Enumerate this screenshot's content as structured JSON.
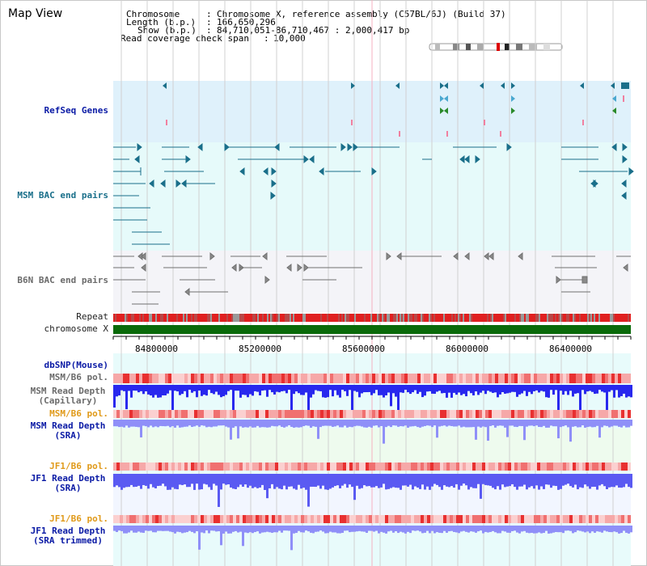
{
  "title": "Map View",
  "info": {
    "chromosome_key": "Chromosome",
    "chromosome_val": "Chromosome X, reference assembly (C57BL/6J) (Build 37)",
    "length_key": "Length (b.p.)",
    "length_val": "166,650,296",
    "show_key": "Show (b.p.)",
    "show_val": "84,710,051-86,710,467 : 2,000,417 bp",
    "span_key": "Read coverage check span",
    "span_val": "10,000"
  },
  "tracks": {
    "refseq": "RefSeq Genes",
    "msm_bac": "MSM BAC end pairs",
    "b6n_bac": "B6N BAC end pairs",
    "repeat": "Repeat",
    "chromosome": "chromosome X",
    "dbsnp": "dbSNP(Mouse)",
    "msm_b6_pol_1": "MSM/B6 pol.",
    "msm_depth_cap_1": "MSM Read Depth",
    "msm_depth_cap_2": "(Capillary)",
    "msm_b6_pol_2": "MSM/B6 pol.",
    "msm_depth_sra_1": "MSM Read Depth",
    "msm_depth_sra_2": "(SRA)",
    "jf1_b6_pol_1": "JF1/B6 pol.",
    "jf1_depth_sra_1": "JF1 Read Depth",
    "jf1_depth_sra_2": "(SRA)",
    "jf1_b6_pol_2": "JF1/B6 pol.",
    "jf1_depth_trim_1": "JF1 Read Depth",
    "jf1_depth_trim_2": "(SRA trimmed)"
  },
  "axis_ticks": [
    "84800000",
    "85200000",
    "85600000",
    "86000000",
    "86400000"
  ],
  "colors": {
    "refseq_bg": "#dff1fb",
    "bac_bg": "#e6fafa",
    "b6n_bg": "#f4f4f8",
    "lower_bg": "#e8fbfb",
    "gene_blue": "#1a6f8a",
    "chromosome_green": "#0a6a0a",
    "repeat_red": "#e02020",
    "pol_pink": "#f4a0a0",
    "depth_blue": "#3030ee",
    "depth_light": "#8f8ff8"
  }
}
